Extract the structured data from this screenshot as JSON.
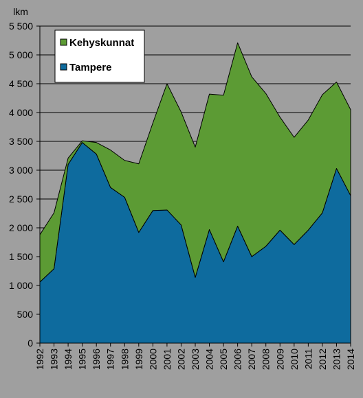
{
  "chart_data": {
    "type": "area",
    "stacked": true,
    "title": "",
    "xlabel": "",
    "ylabel": "lkm",
    "ylim": [
      0,
      5500
    ],
    "y_ticks": [
      0,
      500,
      1000,
      1500,
      2000,
      2500,
      3000,
      3500,
      4000,
      4500,
      5000,
      5500
    ],
    "y_tick_labels": [
      "0",
      "500",
      "1 000",
      "1 500",
      "2 000",
      "2 500",
      "3 000",
      "3 500",
      "4 000",
      "4 500",
      "5 000",
      "5 500"
    ],
    "grid": true,
    "legend_position": "top-left",
    "categories": [
      "1992",
      "1993",
      "1994",
      "1995",
      "1996",
      "1997",
      "1998",
      "1999",
      "2000",
      "2001",
      "2002",
      "2003",
      "2004",
      "2005",
      "2006",
      "2007",
      "2008",
      "2009",
      "2010",
      "2011",
      "2012",
      "2013",
      "2014"
    ],
    "series": [
      {
        "name": "Tampere",
        "color": "#0e6b9e",
        "values": [
          1060,
          1290,
          3100,
          3480,
          3280,
          2700,
          2530,
          1920,
          2300,
          2310,
          2050,
          1140,
          1970,
          1410,
          2030,
          1500,
          1680,
          1960,
          1710,
          1960,
          2260,
          3030,
          2560
        ]
      },
      {
        "name": "Kehyskunnat",
        "color": "#5c9b34",
        "values": [
          820,
          970,
          110,
          30,
          200,
          650,
          640,
          1190,
          1520,
          2190,
          1960,
          2260,
          2350,
          2890,
          3180,
          3120,
          2650,
          1960,
          1860,
          1910,
          2050,
          1500,
          1490
        ]
      }
    ]
  }
}
